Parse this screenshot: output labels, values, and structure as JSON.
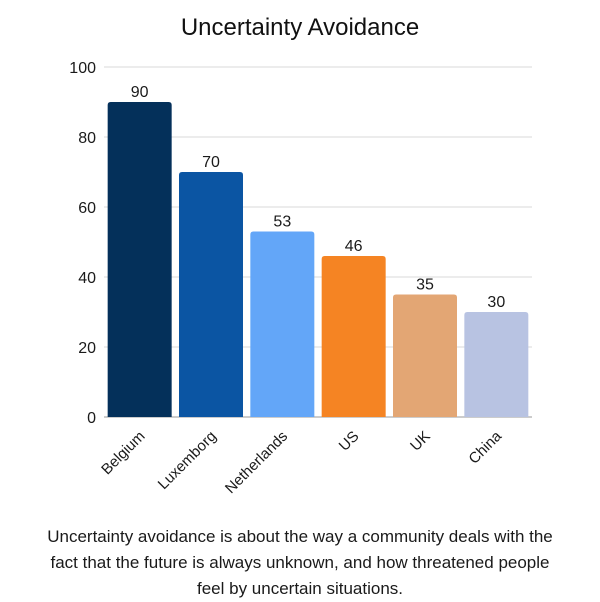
{
  "chart_data": {
    "type": "bar",
    "title": "Uncertainty Avoidance",
    "categories": [
      "Belgium",
      "Luxemborg",
      "Netherlands",
      "US",
      "UK",
      "China"
    ],
    "values": [
      90,
      70,
      53,
      46,
      35,
      30
    ],
    "colors": [
      "#04305a",
      "#0b55a3",
      "#63a6f8",
      "#f58423",
      "#e3a674",
      "#b8c3e2"
    ],
    "ylim": [
      0,
      100
    ],
    "yticks": [
      0,
      20,
      40,
      60,
      80,
      100
    ],
    "xlabel": "",
    "ylabel": "",
    "grid": true,
    "data_labels": true
  },
  "caption": "Uncertainty avoidance is about the way a community deals with the fact that the future is always unknown, and how threatened people feel by uncertain situations.",
  "colors": {
    "grid": "#d9d9d9",
    "axis": "#999999",
    "text": "#1a1a1a"
  }
}
